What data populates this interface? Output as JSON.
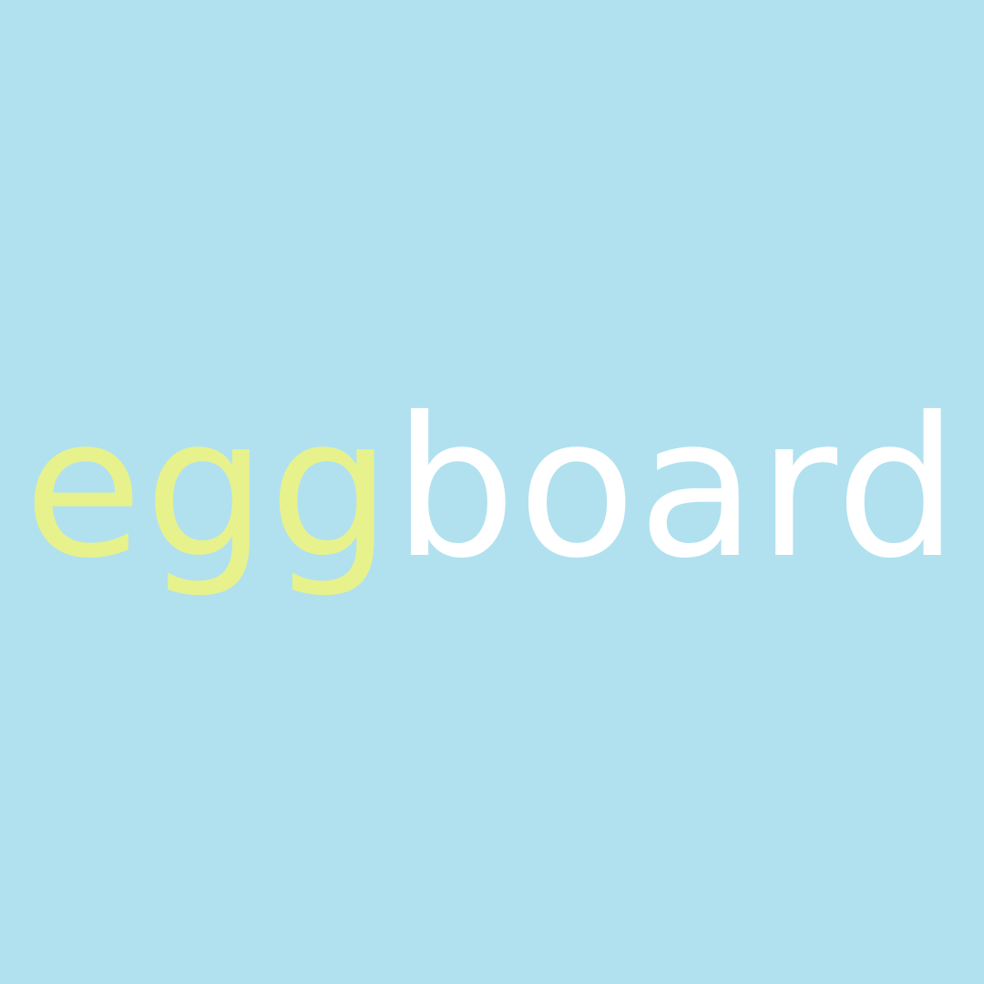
{
  "logo": {
    "part1": "egg",
    "part2": "board"
  },
  "colors": {
    "background": "#b1e1ef",
    "egg_text": "#e7f28c",
    "board_text": "#ffffff"
  }
}
